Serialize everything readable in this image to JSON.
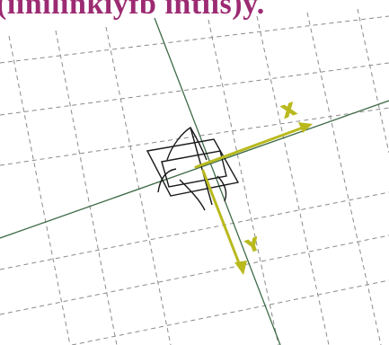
{
  "caption": {
    "text": "(iinilinkiyfb intiis)y.",
    "color": "#9c2b72"
  },
  "scene": {
    "background": "#ffffff",
    "grid_color": "#8a8a8a",
    "reference_line_color": "#3f6b48",
    "compass_color": "#1a1a1a",
    "axis_color": "#b9b91e",
    "axes": {
      "x_label": "X",
      "y_label": "Y"
    }
  }
}
